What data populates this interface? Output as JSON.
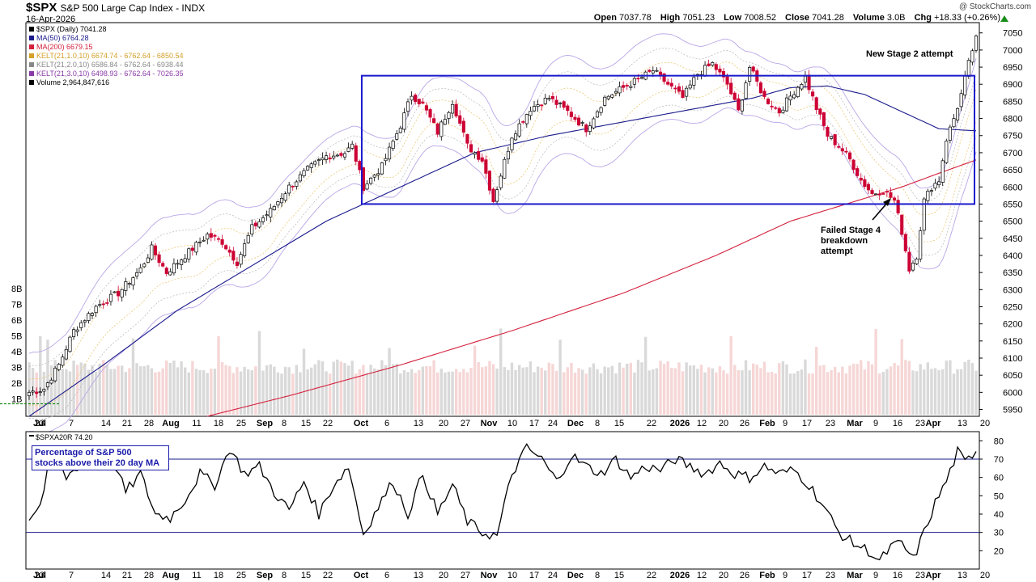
{
  "header": {
    "symbol": "$SPX",
    "name": "S&P 500 Large Cap Index",
    "exchange": "INDX",
    "date": "16-Apr-2026",
    "brand": "@ StockCharts.com",
    "open_label": "Open",
    "open": "7037.78",
    "high_label": "High",
    "high": "7051.23",
    "low_label": "Low",
    "low": "7008.52",
    "close_label": "Close",
    "close": "7041.28",
    "volume_label": "Volume",
    "volume": "3.0B",
    "chg_label": "Chg",
    "chg": "+18.33 (+0.26%)"
  },
  "colors": {
    "up": "#000000",
    "down": "#cc0033",
    "ma50": "#1a1a8c",
    "ma200": "#d4213d",
    "kelt1": "#e6b84d",
    "kelt2": "#a9a9a9",
    "kelt3": "#b9a6e6",
    "box": "#1a1acc",
    "vol_up": "#d9d9d9",
    "vol_down": "#f6d6d6",
    "breadth": "#000000"
  },
  "legend": [
    {
      "text": "$SPX (Daily) 7041.28",
      "color": "#000000"
    },
    {
      "text": "MA(50) 6764.28",
      "color": "#1a1a8c"
    },
    {
      "text": "MA(200) 6679.15",
      "color": "#d4213d"
    },
    {
      "text": "KELT(21,1.0,10) 6674.74 - 6762.64 - 6850.54",
      "color": "#d4a02a"
    },
    {
      "text": "KELT(21,2.0,10) 6586.84 - 6762.64 - 6938.44",
      "color": "#888888"
    },
    {
      "text": "KELT(21,3.0,10) 6498.93 - 6762.64 - 7026.35",
      "color": "#8a3aa8"
    },
    {
      "text": "Volume 2,964,847,616",
      "color": "#000000"
    }
  ],
  "annotations": {
    "stage2": "New Stage 2 attempt",
    "stage4_line1": "Failed Stage 4",
    "stage4_line2": "breakdown",
    "stage4_line3": "attempt",
    "breadth_box_line1": "Percentage of S&P 500",
    "breadth_box_line2": "stocks above their 20 day MA"
  },
  "chart_data": [
    {
      "type": "candlestick",
      "series_name": "$SPX (Daily)",
      "last": 7041.28,
      "ylim": [
        5930,
        7080
      ],
      "y_ticks": [
        5950,
        6000,
        6050,
        6100,
        6150,
        6200,
        6250,
        6300,
        6350,
        6400,
        6450,
        6500,
        6550,
        6600,
        6650,
        6700,
        6750,
        6800,
        6850,
        6900,
        6950,
        7000,
        7050
      ],
      "volume_ticks": [
        "1B",
        "2B",
        "3B",
        "4B",
        "5B",
        "6B",
        "7B",
        "8B"
      ],
      "x_tick_labels": [
        "23",
        "Jul",
        "7",
        "14",
        "21",
        "28",
        "Aug",
        "11",
        "18",
        "25",
        "Sep",
        "8",
        "15",
        "22",
        "Oct",
        "6",
        "13",
        "20",
        "27",
        "Nov",
        "10",
        "17",
        "24",
        "Dec",
        "8",
        "15",
        "22",
        "2026",
        "12",
        "20",
        "26",
        "Feb",
        "9",
        "17",
        "23",
        "Mar",
        "9",
        "16",
        "23",
        "Apr",
        "13",
        "20"
      ],
      "bold_tick_labels": [
        "Jul",
        "Aug",
        "Sep",
        "Oct",
        "Nov",
        "Dec",
        "2026",
        "Feb",
        "Mar",
        "Apr"
      ],
      "close_path": [
        {
          "i": 0,
          "v": 6000
        },
        {
          "i": 4,
          "v": 6010
        },
        {
          "i": 8,
          "v": 6080
        },
        {
          "i": 12,
          "v": 6180
        },
        {
          "i": 18,
          "v": 6250
        },
        {
          "i": 24,
          "v": 6290
        },
        {
          "i": 30,
          "v": 6360
        },
        {
          "i": 33,
          "v": 6420
        },
        {
          "i": 37,
          "v": 6350
        },
        {
          "i": 42,
          "v": 6400
        },
        {
          "i": 48,
          "v": 6460
        },
        {
          "i": 52,
          "v": 6440
        },
        {
          "i": 56,
          "v": 6380
        },
        {
          "i": 60,
          "v": 6480
        },
        {
          "i": 65,
          "v": 6530
        },
        {
          "i": 70,
          "v": 6600
        },
        {
          "i": 75,
          "v": 6650
        },
        {
          "i": 80,
          "v": 6690
        },
        {
          "i": 85,
          "v": 6700
        },
        {
          "i": 87,
          "v": 6720
        },
        {
          "i": 90,
          "v": 6600
        },
        {
          "i": 95,
          "v": 6660
        },
        {
          "i": 100,
          "v": 6780
        },
        {
          "i": 103,
          "v": 6870
        },
        {
          "i": 106,
          "v": 6840
        },
        {
          "i": 110,
          "v": 6760
        },
        {
          "i": 114,
          "v": 6850
        },
        {
          "i": 118,
          "v": 6720
        },
        {
          "i": 122,
          "v": 6680
        },
        {
          "i": 125,
          "v": 6560
        },
        {
          "i": 130,
          "v": 6750
        },
        {
          "i": 135,
          "v": 6830
        },
        {
          "i": 140,
          "v": 6860
        },
        {
          "i": 145,
          "v": 6820
        },
        {
          "i": 150,
          "v": 6770
        },
        {
          "i": 155,
          "v": 6860
        },
        {
          "i": 160,
          "v": 6890
        },
        {
          "i": 165,
          "v": 6920
        },
        {
          "i": 168,
          "v": 6940
        },
        {
          "i": 172,
          "v": 6900
        },
        {
          "i": 176,
          "v": 6860
        },
        {
          "i": 180,
          "v": 6930
        },
        {
          "i": 184,
          "v": 6960
        },
        {
          "i": 188,
          "v": 6900
        },
        {
          "i": 191,
          "v": 6820
        },
        {
          "i": 194,
          "v": 6950
        },
        {
          "i": 198,
          "v": 6860
        },
        {
          "i": 202,
          "v": 6820
        },
        {
          "i": 206,
          "v": 6880
        },
        {
          "i": 209,
          "v": 6920
        },
        {
          "i": 212,
          "v": 6830
        },
        {
          "i": 215,
          "v": 6750
        },
        {
          "i": 218,
          "v": 6720
        },
        {
          "i": 221,
          "v": 6680
        },
        {
          "i": 224,
          "v": 6620
        },
        {
          "i": 227,
          "v": 6580
        },
        {
          "i": 230,
          "v": 6590
        },
        {
          "i": 233,
          "v": 6560
        },
        {
          "i": 235,
          "v": 6470
        },
        {
          "i": 237,
          "v": 6360
        },
        {
          "i": 239,
          "v": 6400
        },
        {
          "i": 241,
          "v": 6560
        },
        {
          "i": 243,
          "v": 6600
        },
        {
          "i": 245,
          "v": 6620
        },
        {
          "i": 247,
          "v": 6740
        },
        {
          "i": 249,
          "v": 6800
        },
        {
          "i": 251,
          "v": 6870
        },
        {
          "i": 253,
          "v": 6960
        },
        {
          "i": 255,
          "v": 7041
        }
      ],
      "ma50_path": [
        {
          "i": 0,
          "v": 5930
        },
        {
          "i": 20,
          "v": 6080
        },
        {
          "i": 40,
          "v": 6240
        },
        {
          "i": 60,
          "v": 6370
        },
        {
          "i": 80,
          "v": 6500
        },
        {
          "i": 100,
          "v": 6600
        },
        {
          "i": 120,
          "v": 6700
        },
        {
          "i": 140,
          "v": 6750
        },
        {
          "i": 160,
          "v": 6790
        },
        {
          "i": 180,
          "v": 6830
        },
        {
          "i": 195,
          "v": 6860
        },
        {
          "i": 205,
          "v": 6890
        },
        {
          "i": 215,
          "v": 6895
        },
        {
          "i": 225,
          "v": 6870
        },
        {
          "i": 235,
          "v": 6820
        },
        {
          "i": 245,
          "v": 6770
        },
        {
          "i": 255,
          "v": 6764
        }
      ],
      "ma200_path": [
        {
          "i": 48,
          "v": 5930
        },
        {
          "i": 70,
          "v": 5990
        },
        {
          "i": 100,
          "v": 6080
        },
        {
          "i": 130,
          "v": 6180
        },
        {
          "i": 160,
          "v": 6290
        },
        {
          "i": 185,
          "v": 6400
        },
        {
          "i": 205,
          "v": 6500
        },
        {
          "i": 220,
          "v": 6550
        },
        {
          "i": 235,
          "v": 6600
        },
        {
          "i": 245,
          "v": 6640
        },
        {
          "i": 255,
          "v": 6679
        }
      ],
      "consolidation_box": {
        "start_i": 90,
        "end_i": 255,
        "low": 6550,
        "high": 6925
      }
    },
    {
      "type": "line",
      "series_name": "$SPXA20R",
      "last": 74.2,
      "ylim": [
        10,
        85
      ],
      "y_ticks": [
        20,
        30,
        40,
        50,
        60,
        70,
        80
      ],
      "reference_lines": [
        70,
        30
      ],
      "path": [
        {
          "i": 0,
          "v": 38
        },
        {
          "i": 3,
          "v": 45
        },
        {
          "i": 6,
          "v": 72
        },
        {
          "i": 10,
          "v": 60
        },
        {
          "i": 14,
          "v": 68
        },
        {
          "i": 18,
          "v": 66
        },
        {
          "i": 22,
          "v": 72
        },
        {
          "i": 26,
          "v": 52
        },
        {
          "i": 30,
          "v": 62
        },
        {
          "i": 34,
          "v": 40
        },
        {
          "i": 38,
          "v": 38
        },
        {
          "i": 42,
          "v": 48
        },
        {
          "i": 46,
          "v": 62
        },
        {
          "i": 50,
          "v": 56
        },
        {
          "i": 54,
          "v": 76
        },
        {
          "i": 58,
          "v": 62
        },
        {
          "i": 62,
          "v": 66
        },
        {
          "i": 66,
          "v": 52
        },
        {
          "i": 70,
          "v": 42
        },
        {
          "i": 74,
          "v": 58
        },
        {
          "i": 78,
          "v": 40
        },
        {
          "i": 82,
          "v": 56
        },
        {
          "i": 86,
          "v": 66
        },
        {
          "i": 90,
          "v": 29
        },
        {
          "i": 94,
          "v": 44
        },
        {
          "i": 98,
          "v": 58
        },
        {
          "i": 102,
          "v": 40
        },
        {
          "i": 106,
          "v": 62
        },
        {
          "i": 110,
          "v": 40
        },
        {
          "i": 114,
          "v": 56
        },
        {
          "i": 118,
          "v": 36
        },
        {
          "i": 122,
          "v": 30
        },
        {
          "i": 126,
          "v": 28
        },
        {
          "i": 130,
          "v": 62
        },
        {
          "i": 134,
          "v": 76
        },
        {
          "i": 138,
          "v": 70
        },
        {
          "i": 142,
          "v": 58
        },
        {
          "i": 146,
          "v": 72
        },
        {
          "i": 150,
          "v": 66
        },
        {
          "i": 154,
          "v": 62
        },
        {
          "i": 158,
          "v": 70
        },
        {
          "i": 162,
          "v": 60
        },
        {
          "i": 166,
          "v": 66
        },
        {
          "i": 170,
          "v": 64
        },
        {
          "i": 174,
          "v": 70
        },
        {
          "i": 178,
          "v": 66
        },
        {
          "i": 182,
          "v": 62
        },
        {
          "i": 186,
          "v": 68
        },
        {
          "i": 190,
          "v": 62
        },
        {
          "i": 194,
          "v": 60
        },
        {
          "i": 198,
          "v": 66
        },
        {
          "i": 202,
          "v": 62
        },
        {
          "i": 206,
          "v": 64
        },
        {
          "i": 210,
          "v": 56
        },
        {
          "i": 214,
          "v": 44
        },
        {
          "i": 218,
          "v": 30
        },
        {
          "i": 222,
          "v": 24
        },
        {
          "i": 226,
          "v": 20
        },
        {
          "i": 229,
          "v": 14
        },
        {
          "i": 232,
          "v": 22
        },
        {
          "i": 235,
          "v": 24
        },
        {
          "i": 238,
          "v": 15
        },
        {
          "i": 241,
          "v": 30
        },
        {
          "i": 244,
          "v": 46
        },
        {
          "i": 247,
          "v": 58
        },
        {
          "i": 250,
          "v": 74
        },
        {
          "i": 252,
          "v": 68
        },
        {
          "i": 254,
          "v": 72
        },
        {
          "i": 255,
          "v": 74.2
        }
      ]
    }
  ]
}
